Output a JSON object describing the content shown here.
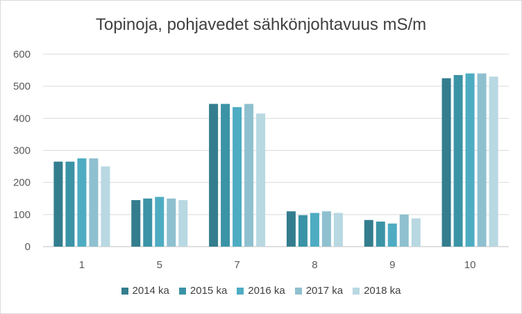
{
  "chart_data": {
    "type": "bar",
    "title": "Topinoja, pohjavedet sähkönjohtavuus mS/m",
    "xlabel": "",
    "ylabel": "",
    "categories": [
      "1",
      "5",
      "7",
      "8",
      "9",
      "10"
    ],
    "ylim": [
      0,
      600
    ],
    "yticks": [
      "0",
      "100",
      "200",
      "300",
      "400",
      "500",
      "600"
    ],
    "grid": true,
    "legend_position": "bottom",
    "series": [
      {
        "name": "2014 ka",
        "color": "#337d8e",
        "values": [
          265,
          145,
          445,
          110,
          83,
          525
        ]
      },
      {
        "name": "2015 ka",
        "color": "#3b93a6",
        "values": [
          265,
          150,
          445,
          98,
          78,
          535
        ]
      },
      {
        "name": "2016 ka",
        "color": "#4eacc2",
        "values": [
          275,
          155,
          435,
          105,
          72,
          540
        ]
      },
      {
        "name": "2017 ka",
        "color": "#8fc0cf",
        "values": [
          275,
          150,
          445,
          110,
          100,
          540
        ]
      },
      {
        "name": "2018 ka",
        "color": "#b8d8e2",
        "values": [
          250,
          145,
          415,
          105,
          88,
          530
        ]
      }
    ]
  }
}
